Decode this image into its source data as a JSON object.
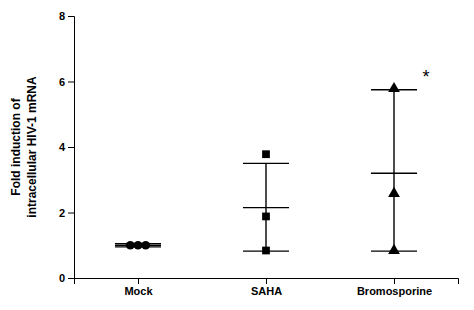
{
  "chart_data": {
    "type": "dot",
    "categories": [
      "Mock",
      "SAHA",
      "Bromosporine"
    ],
    "values": [
      1.0,
      2.15,
      3.2
    ],
    "error_high": [
      1.05,
      3.5,
      5.75
    ],
    "error_low": [
      0.95,
      0.82,
      0.82
    ],
    "points": [
      {
        "marker": "circle",
        "values": [
          1.0,
          1.0,
          1.0
        ]
      },
      {
        "marker": "square",
        "values": [
          3.78,
          1.88,
          0.84
        ]
      },
      {
        "marker": "triangle",
        "values": [
          5.78,
          2.58,
          0.84
        ]
      }
    ],
    "ylabel": "Fold induction of\nintracellular HIV-1 mRNA",
    "ylim": [
      0,
      8
    ],
    "yticks": [
      0,
      2,
      4,
      6,
      8
    ],
    "annotations": [
      {
        "text": "*",
        "category": "Bromosporine"
      }
    ],
    "color": "#000000",
    "grid": false
  }
}
